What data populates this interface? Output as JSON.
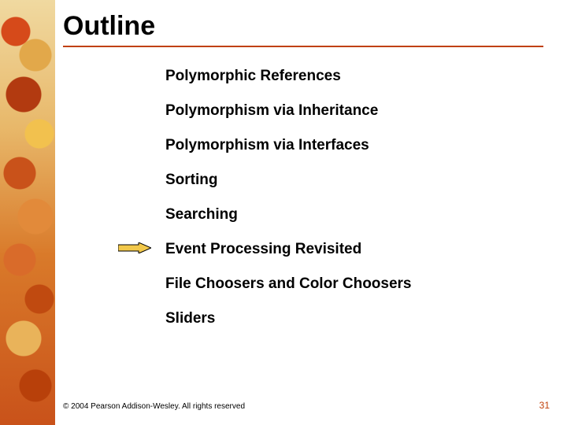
{
  "title": "Outline",
  "topics": [
    "Polymorphic References",
    "Polymorphism via Inheritance",
    "Polymorphism via Interfaces",
    "Sorting",
    "Searching",
    "Event Processing Revisited",
    "File Choosers and Color Choosers",
    "Sliders"
  ],
  "current_topic_index": 5,
  "footer": "© 2004 Pearson Addison-Wesley. All rights reserved",
  "page_number": "31",
  "style": {
    "title_fontsize": 34,
    "title_color": "#000000",
    "underline_color": "#c0400a",
    "topic_fontsize": 19,
    "topic_fontweight": 700,
    "topic_color": "#000000",
    "topic_line_spacing": 22,
    "footer_fontsize": 10,
    "page_number_color": "#c0400a",
    "page_number_fontsize": 12,
    "background_color": "#ffffff",
    "arrow_fill": "#f2c84a",
    "arrow_stroke": "#000000",
    "slide_width": 720,
    "slide_height": 540
  }
}
